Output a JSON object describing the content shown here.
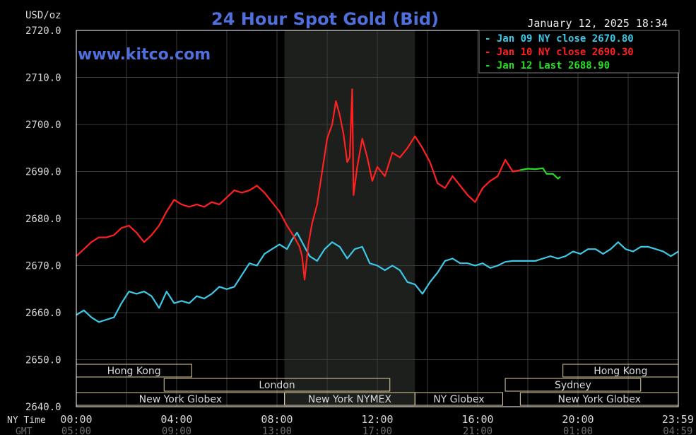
{
  "chart_data": {
    "type": "line",
    "title": "24 Hour Spot Gold (Bid)",
    "watermark": "www.kitco.com",
    "timestamp": "January 12, 2025 18:34",
    "ylabel": "USD/oz",
    "ylim": [
      2640,
      2720
    ],
    "yticks": [
      "2720.0",
      "2710.0",
      "2700.0",
      "2690.0",
      "2680.0",
      "2670.0",
      "2660.0",
      "2650.0",
      "2640.0"
    ],
    "ytick_values": [
      2720,
      2710,
      2700,
      2690,
      2680,
      2670,
      2660,
      2650,
      2640
    ],
    "x_axis_label": "NY Time",
    "x_axis_label2": "GMT",
    "xlim": [
      0,
      24
    ],
    "xticks": [
      "00:00",
      "04:00",
      "08:00",
      "12:00",
      "16:00",
      "20:00",
      "23:59"
    ],
    "xtick_values": [
      0,
      4,
      8,
      12,
      16,
      20,
      23.98
    ],
    "gmt_ticks": [
      "05:00",
      "09:00",
      "13:00",
      "17:00",
      "21:00",
      "01:00",
      "04:59"
    ],
    "grid": true,
    "shaded_hours": [
      8.3,
      13.5
    ],
    "colors": {
      "frame": "#ffffff",
      "grid": "#3a3a3a",
      "text": "#d8d8d8",
      "title": "#4f6fdc",
      "watermark": "#4f6fdc",
      "shade": "#1d1f1d",
      "label_border": "#e0d0a0"
    },
    "legend": [
      {
        "text": "- Jan 09 NY close 2670.80",
        "color": "#3cc8e6"
      },
      {
        "text": "- Jan 10 NY close 2690.30",
        "color": "#ff2020"
      },
      {
        "text": "- Jan 12 Last 2688.90",
        "color": "#22e022"
      }
    ],
    "sessions": [
      {
        "label": "Hong Kong",
        "row": 0,
        "start": 0,
        "end": 4.6
      },
      {
        "label": "Hong Kong",
        "row": 0,
        "start": 19.4,
        "end": 24
      },
      {
        "label": "London",
        "row": 1,
        "start": 3.5,
        "end": 12.5
      },
      {
        "label": "Sydney",
        "row": 1,
        "start": 17.1,
        "end": 22.5
      },
      {
        "label": "New York Globex",
        "row": 2,
        "start": 0,
        "end": 8.3
      },
      {
        "label": "New York NYMEX",
        "row": 2,
        "start": 8.3,
        "end": 13.5
      },
      {
        "label": "NY Globex",
        "row": 2,
        "start": 13.5,
        "end": 17.0
      },
      {
        "label": "New York Globex",
        "row": 2,
        "start": 17.7,
        "end": 24
      }
    ],
    "series": [
      {
        "name": "Jan 09 NY close 2670.80",
        "color": "#3cc8e6",
        "points": [
          [
            0.0,
            2659.5
          ],
          [
            0.3,
            2660.5
          ],
          [
            0.6,
            2659.0
          ],
          [
            0.9,
            2658.0
          ],
          [
            1.2,
            2658.5
          ],
          [
            1.5,
            2659.0
          ],
          [
            1.8,
            2662.0
          ],
          [
            2.1,
            2664.5
          ],
          [
            2.4,
            2664.0
          ],
          [
            2.7,
            2664.5
          ],
          [
            3.0,
            2663.5
          ],
          [
            3.3,
            2661.0
          ],
          [
            3.6,
            2664.5
          ],
          [
            3.9,
            2662.0
          ],
          [
            4.2,
            2662.5
          ],
          [
            4.5,
            2662.0
          ],
          [
            4.8,
            2663.5
          ],
          [
            5.1,
            2663.0
          ],
          [
            5.4,
            2664.0
          ],
          [
            5.7,
            2665.5
          ],
          [
            6.0,
            2665.0
          ],
          [
            6.3,
            2665.5
          ],
          [
            6.6,
            2668.0
          ],
          [
            6.9,
            2670.5
          ],
          [
            7.2,
            2670.0
          ],
          [
            7.5,
            2672.5
          ],
          [
            7.8,
            2673.5
          ],
          [
            8.1,
            2674.5
          ],
          [
            8.4,
            2673.5
          ],
          [
            8.6,
            2675.5
          ],
          [
            8.8,
            2677.0
          ],
          [
            9.0,
            2675.0
          ],
          [
            9.3,
            2672.0
          ],
          [
            9.6,
            2671.0
          ],
          [
            9.9,
            2673.5
          ],
          [
            10.2,
            2675.0
          ],
          [
            10.5,
            2674.0
          ],
          [
            10.8,
            2671.5
          ],
          [
            11.1,
            2673.5
          ],
          [
            11.4,
            2674.0
          ],
          [
            11.7,
            2670.5
          ],
          [
            12.0,
            2670.0
          ],
          [
            12.3,
            2669.0
          ],
          [
            12.6,
            2670.0
          ],
          [
            12.9,
            2669.0
          ],
          [
            13.2,
            2666.5
          ],
          [
            13.5,
            2666.0
          ],
          [
            13.8,
            2664.0
          ],
          [
            14.1,
            2666.5
          ],
          [
            14.4,
            2668.5
          ],
          [
            14.7,
            2671.0
          ],
          [
            15.0,
            2671.5
          ],
          [
            15.3,
            2670.5
          ],
          [
            15.6,
            2670.5
          ],
          [
            15.9,
            2670.0
          ],
          [
            16.2,
            2670.5
          ],
          [
            16.5,
            2669.5
          ],
          [
            16.8,
            2670.0
          ],
          [
            17.1,
            2670.8
          ],
          [
            17.4,
            2671.0
          ],
          [
            17.7,
            2671.0
          ],
          [
            18.0,
            2671.0
          ],
          [
            18.3,
            2671.0
          ],
          [
            18.6,
            2671.5
          ],
          [
            18.9,
            2672.0
          ],
          [
            19.2,
            2671.5
          ],
          [
            19.5,
            2672.0
          ],
          [
            19.8,
            2673.0
          ],
          [
            20.1,
            2672.5
          ],
          [
            20.4,
            2673.5
          ],
          [
            20.7,
            2673.5
          ],
          [
            21.0,
            2672.5
          ],
          [
            21.3,
            2673.5
          ],
          [
            21.6,
            2675.0
          ],
          [
            21.9,
            2673.5
          ],
          [
            22.2,
            2673.0
          ],
          [
            22.5,
            2674.0
          ],
          [
            22.8,
            2674.0
          ],
          [
            23.1,
            2673.5
          ],
          [
            23.4,
            2673.0
          ],
          [
            23.7,
            2672.0
          ],
          [
            24.0,
            2673.0
          ]
        ]
      },
      {
        "name": "Jan 10 NY close 2690.30",
        "color": "#ff2020",
        "points": [
          [
            0.0,
            2672.0
          ],
          [
            0.3,
            2673.5
          ],
          [
            0.6,
            2675.0
          ],
          [
            0.9,
            2676.0
          ],
          [
            1.2,
            2676.0
          ],
          [
            1.5,
            2676.5
          ],
          [
            1.8,
            2678.0
          ],
          [
            2.1,
            2678.5
          ],
          [
            2.4,
            2677.0
          ],
          [
            2.7,
            2675.0
          ],
          [
            3.0,
            2676.5
          ],
          [
            3.3,
            2678.5
          ],
          [
            3.6,
            2681.5
          ],
          [
            3.9,
            2684.0
          ],
          [
            4.2,
            2683.0
          ],
          [
            4.5,
            2682.5
          ],
          [
            4.8,
            2683.0
          ],
          [
            5.1,
            2682.5
          ],
          [
            5.4,
            2683.5
          ],
          [
            5.7,
            2683.0
          ],
          [
            6.0,
            2684.5
          ],
          [
            6.3,
            2686.0
          ],
          [
            6.6,
            2685.5
          ],
          [
            6.9,
            2686.0
          ],
          [
            7.2,
            2687.0
          ],
          [
            7.5,
            2685.5
          ],
          [
            7.8,
            2683.5
          ],
          [
            8.1,
            2681.5
          ],
          [
            8.4,
            2678.5
          ],
          [
            8.7,
            2676.0
          ],
          [
            8.9,
            2674.0
          ],
          [
            9.0,
            2672.0
          ],
          [
            9.1,
            2667.0
          ],
          [
            9.25,
            2674.5
          ],
          [
            9.4,
            2679.0
          ],
          [
            9.6,
            2683.0
          ],
          [
            9.8,
            2690.0
          ],
          [
            10.0,
            2697.0
          ],
          [
            10.2,
            2700.0
          ],
          [
            10.35,
            2705.0
          ],
          [
            10.5,
            2702.0
          ],
          [
            10.65,
            2698.0
          ],
          [
            10.8,
            2692.0
          ],
          [
            10.9,
            2693.0
          ],
          [
            11.0,
            2707.5
          ],
          [
            11.05,
            2685.0
          ],
          [
            11.2,
            2691.0
          ],
          [
            11.4,
            2697.0
          ],
          [
            11.6,
            2693.0
          ],
          [
            11.8,
            2688.0
          ],
          [
            12.0,
            2691.0
          ],
          [
            12.3,
            2689.0
          ],
          [
            12.6,
            2694.0
          ],
          [
            12.9,
            2693.0
          ],
          [
            13.2,
            2695.0
          ],
          [
            13.5,
            2697.5
          ],
          [
            13.8,
            2695.0
          ],
          [
            14.1,
            2692.0
          ],
          [
            14.4,
            2687.5
          ],
          [
            14.7,
            2686.5
          ],
          [
            15.0,
            2689.0
          ],
          [
            15.3,
            2687.0
          ],
          [
            15.6,
            2685.0
          ],
          [
            15.9,
            2683.5
          ],
          [
            16.2,
            2686.5
          ],
          [
            16.5,
            2688.0
          ],
          [
            16.8,
            2689.0
          ],
          [
            17.1,
            2692.5
          ],
          [
            17.4,
            2690.0
          ],
          [
            17.7,
            2690.3
          ]
        ]
      },
      {
        "name": "Jan 12 Last 2688.90",
        "color": "#22e022",
        "points": [
          [
            17.7,
            2690.3
          ],
          [
            18.0,
            2690.6
          ],
          [
            18.3,
            2690.5
          ],
          [
            18.6,
            2690.7
          ],
          [
            18.75,
            2689.5
          ],
          [
            19.0,
            2689.5
          ],
          [
            19.2,
            2688.5
          ],
          [
            19.3,
            2688.9
          ]
        ]
      }
    ]
  }
}
